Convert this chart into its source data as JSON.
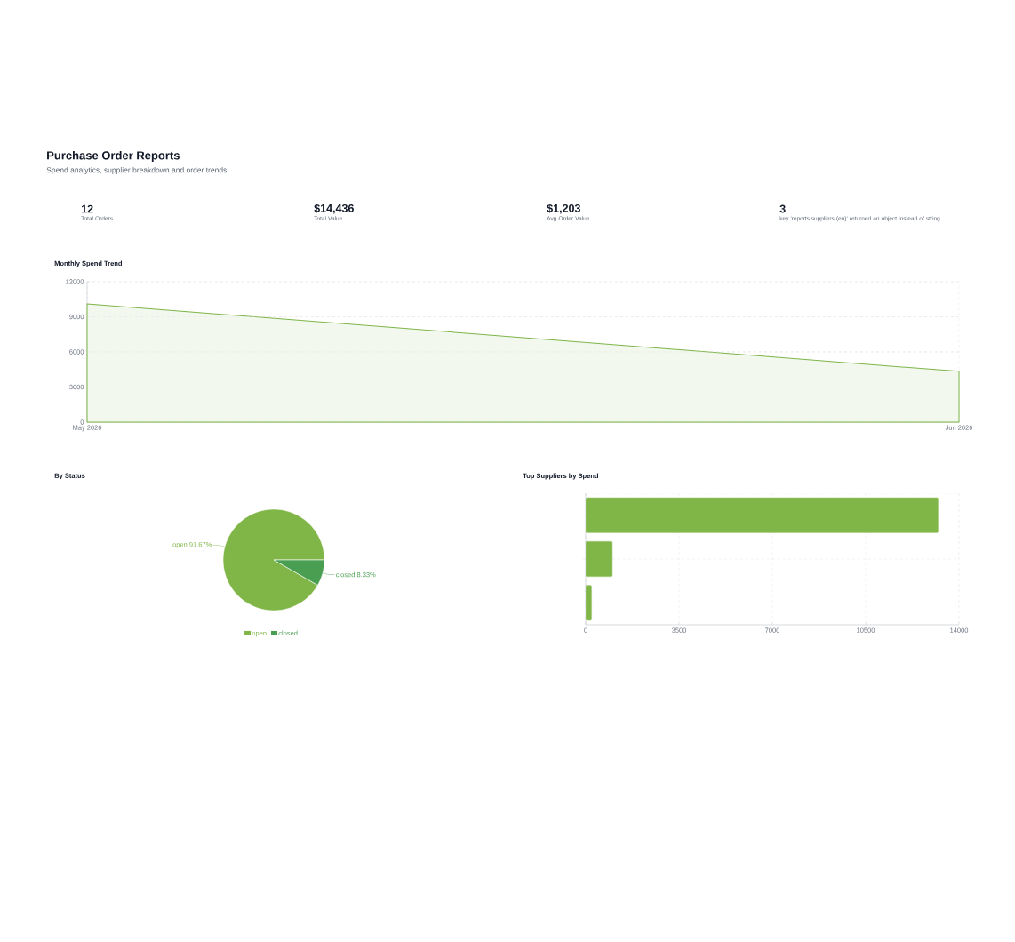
{
  "chart_data": [
    {
      "type": "other",
      "title": "Purchase Order Reports",
      "subtitle": "Spend analytics, supplier breakdown and order trends",
      "categories": [
        "Total Orders",
        "Total Value",
        "Avg Order Value",
        "key 'reports.suppliers (en)' returned an object instead of string."
      ],
      "value_labels": [
        "12",
        "$14,436",
        "$1,203",
        "3"
      ]
    },
    {
      "type": "area",
      "title": "Monthly Spend Trend",
      "categories": [
        "May 2026",
        "Jun 2026"
      ],
      "values": [
        10100,
        4340
      ],
      "color": "#7db548",
      "ylim": [
        0,
        12000
      ],
      "yticks": [
        0,
        3000,
        6000,
        9000,
        12000
      ],
      "grid": true,
      "marker": "none"
    },
    {
      "type": "pie",
      "title": "By Status",
      "categories": [
        "open",
        "closed"
      ],
      "values": [
        91.67,
        8.33
      ],
      "value_labels": [
        "91.67%",
        "8.33%"
      ],
      "colors": [
        "#80b648",
        "#4a9e52"
      ],
      "legend": "bottom"
    },
    {
      "type": "bar",
      "title": "Top Suppliers by Spend",
      "orientation": "horizontal",
      "categories": [
        null,
        null,
        null
      ],
      "values": [
        13220,
        1000,
        220
      ],
      "color": "#80b648",
      "xlim": [
        0,
        14000
      ],
      "xticks": [
        0,
        3500,
        7000,
        10500,
        14000
      ],
      "grid": true
    }
  ]
}
